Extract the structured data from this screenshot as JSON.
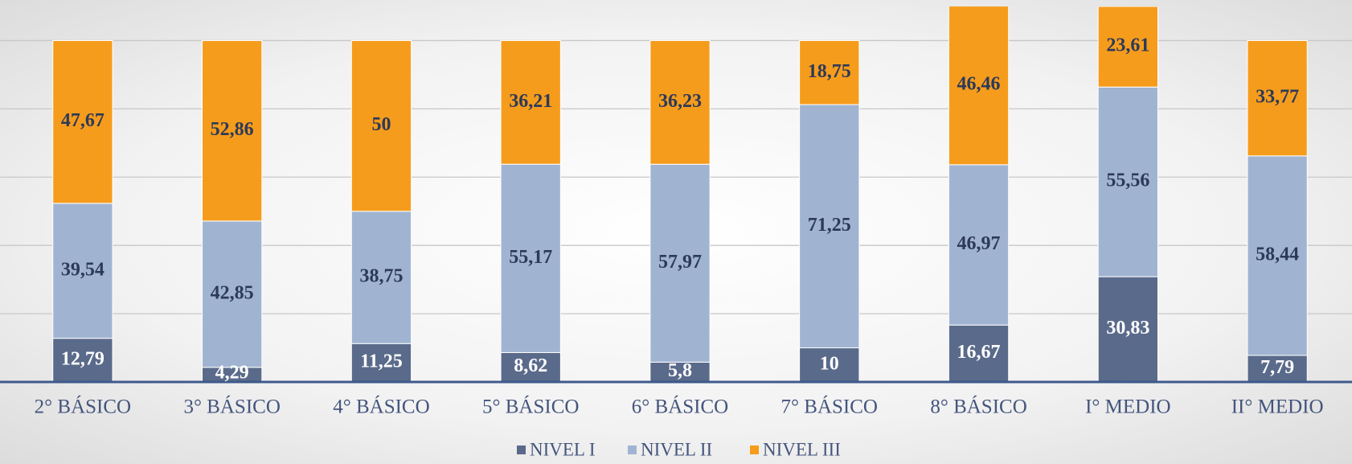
{
  "chart_data": {
    "type": "stacked_bar",
    "categories": [
      "2° BÁSICO",
      "3° BÁSICO",
      "4° BÁSICO",
      "5° BÁSICO",
      "6° BÁSICO",
      "7° BÁSICO",
      "8° BÁSICO",
      "I° MEDIO",
      "II° MEDIO"
    ],
    "series": [
      {
        "name": "NIVEL I",
        "color": "#5a6a8a",
        "values": [
          12.79,
          4.29,
          11.25,
          8.62,
          5.8,
          10,
          16.67,
          30.83,
          7.79
        ],
        "value_labels": [
          "12,79",
          "4,29",
          "11,25",
          "8,62",
          "5,8",
          "10",
          "16,67",
          "30,83",
          "7,79"
        ]
      },
      {
        "name": "NIVEL II",
        "color": "#a0b4d2",
        "values": [
          39.54,
          42.85,
          38.75,
          55.17,
          57.97,
          71.25,
          46.97,
          55.56,
          58.44
        ],
        "value_labels": [
          "39,54",
          "42,85",
          "38,75",
          "55,17",
          "57,97",
          "71,25",
          "46,97",
          "55,56",
          "58,44"
        ]
      },
      {
        "name": "NIVEL III",
        "color": "#f69c1c",
        "values": [
          47.67,
          52.86,
          50,
          36.21,
          36.23,
          18.75,
          46.46,
          23.61,
          33.77
        ],
        "value_labels": [
          "47,67",
          "52,86",
          "50",
          "36,21",
          "36,23",
          "18,75",
          "46,46",
          "23,61",
          "33,77"
        ]
      }
    ],
    "ylim": [
      0,
      110
    ],
    "yticks": [
      0,
      20,
      40,
      60,
      80,
      100
    ],
    "grid": true,
    "legend": "bottom"
  }
}
